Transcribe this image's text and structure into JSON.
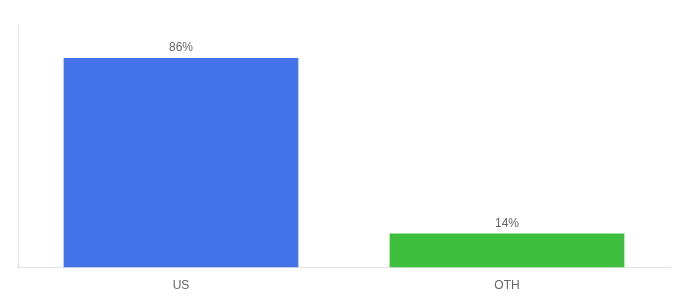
{
  "chart_data": {
    "type": "bar",
    "categories": [
      "US",
      "OTH"
    ],
    "values": [
      86,
      14
    ],
    "value_labels": [
      "86%",
      "14%"
    ],
    "colors": [
      "#4472e8",
      "#3dbf3d"
    ],
    "data_labels": true,
    "ylim": [
      0,
      100
    ],
    "tick_labels": "x",
    "grid": false
  }
}
